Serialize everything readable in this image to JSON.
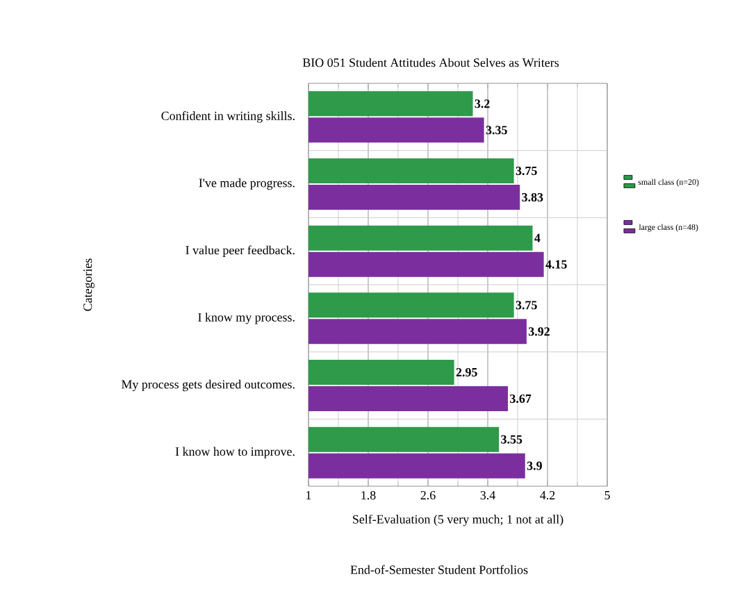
{
  "chart_data": {
    "type": "bar",
    "orientation": "horizontal",
    "title": "BIO 051 Student Attitudes About Selves as Writers",
    "xlabel": "Self-Evaluation (5 very much; 1 not at all)",
    "ylabel": "Categories",
    "annotations": [
      "End-of-Semester Student Portfolios"
    ],
    "categories": [
      "Confident in writing skills.",
      "I've made progress.",
      "I value peer feedback.",
      "I know my process.",
      "My process gets desired outcomes.",
      "I know how to improve."
    ],
    "series": [
      {
        "name": "small class (n=20)",
        "color": "#2e9a4a",
        "values": [
          3.2,
          3.75,
          4,
          3.75,
          2.95,
          3.55
        ]
      },
      {
        "name": "large class (n=48)",
        "color": "#7b2f9e",
        "values": [
          3.35,
          3.83,
          4.15,
          3.92,
          3.67,
          3.9
        ]
      }
    ],
    "xlim": [
      1,
      5
    ],
    "xticks": [
      1,
      1.8,
      2.6,
      3.4,
      4.2,
      5
    ],
    "grid": true,
    "legend": "right",
    "data_labels": true
  }
}
